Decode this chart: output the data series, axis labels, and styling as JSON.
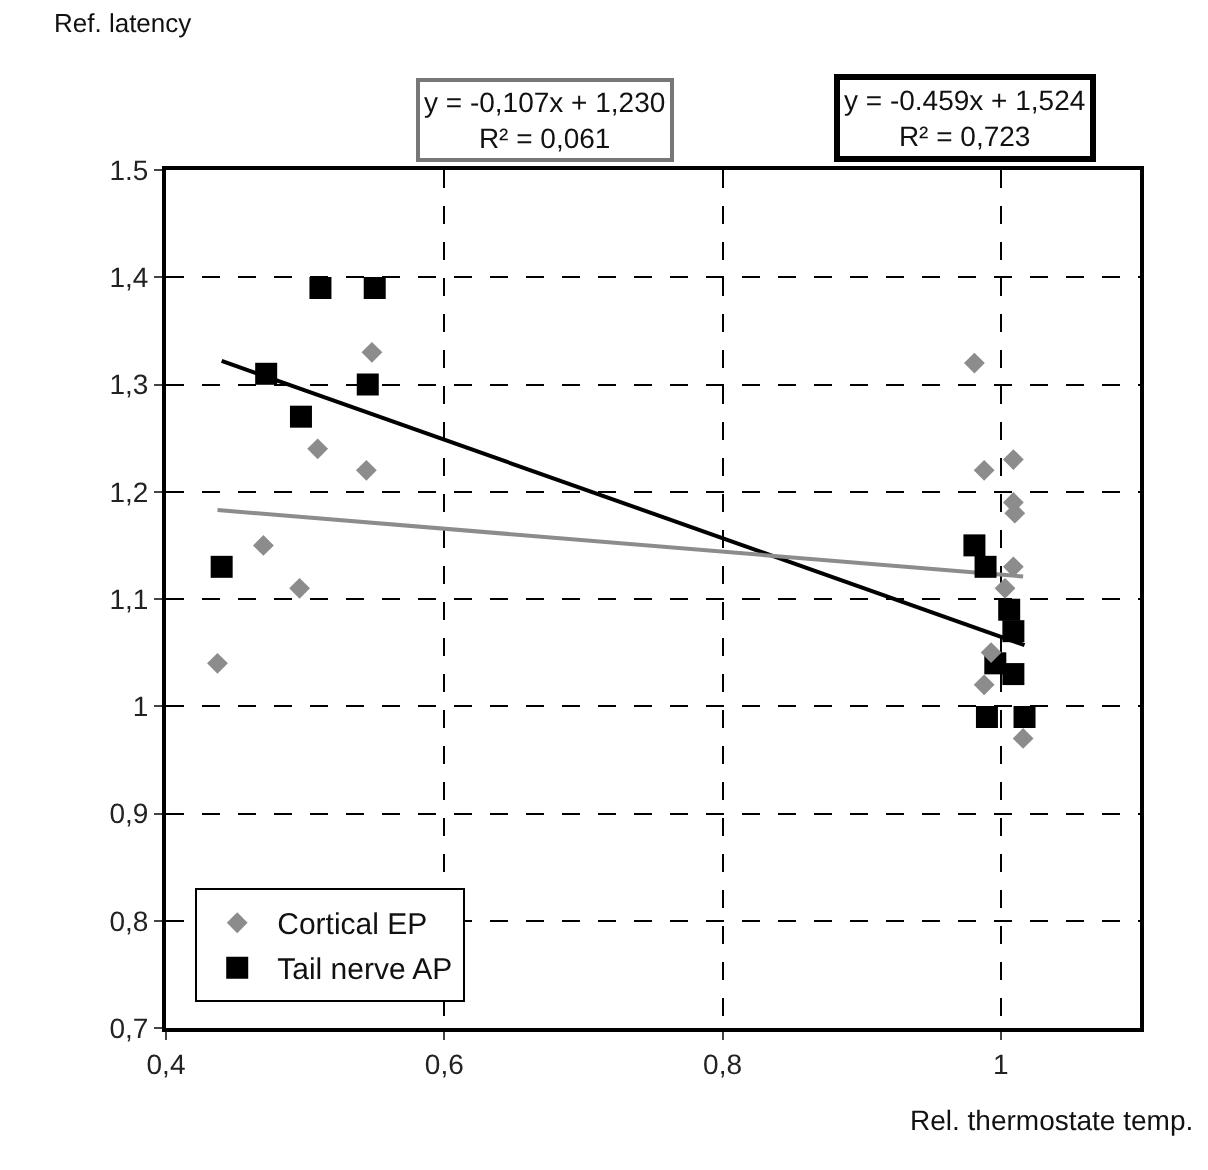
{
  "chart_data": {
    "type": "scatter",
    "xlabel": "Rel. thermostate temp.",
    "ylabel": "Ref. latency",
    "annotations": [
      "y = -0,107x + 1,230\nR² = 0,061",
      "y = -0.459x + 1,524\nR² = 0,723"
    ],
    "xlim": [
      0.4,
      1.1
    ],
    "ylim": [
      0.7,
      1.5
    ],
    "xticks": [
      {
        "value": 0.4,
        "label": "0,4"
      },
      {
        "value": 0.6,
        "label": "0,6"
      },
      {
        "value": 0.8,
        "label": "0,8"
      },
      1
    ],
    "yticks": [
      {
        "value": 0.7,
        "label": "0,7"
      },
      {
        "value": 0.8,
        "label": "0,8"
      },
      {
        "value": 0.9,
        "label": "0,9"
      },
      1,
      {
        "value": 1.1,
        "label": "1,1"
      },
      {
        "value": 1.2,
        "label": "1,2"
      },
      {
        "value": 1.3,
        "label": "1,3"
      },
      {
        "value": 1.4,
        "label": "1,4"
      },
      1.5
    ],
    "grid": true,
    "legend": "bottom left",
    "series": [
      {
        "name": "Cortical EP",
        "color": "#8c8c8c",
        "marker": "diamond",
        "x": [
          0.548,
          0.509,
          0.544,
          0.47,
          0.496,
          0.437,
          0.981,
          0.988,
          1.009,
          1.009,
          1.01,
          1.009,
          1.003,
          0.993,
          0.988,
          1.016
        ],
        "values": [
          1.33,
          1.24,
          1.22,
          1.15,
          1.11,
          1.04,
          1.32,
          1.22,
          1.23,
          1.19,
          1.18,
          1.13,
          1.11,
          1.05,
          1.02,
          0.97
        ]
      },
      {
        "name": "Tail nerve AP",
        "color": "#000000",
        "marker": "square",
        "x": [
          0.44,
          0.472,
          0.497,
          0.511,
          0.55,
          0.545,
          0.981,
          0.989,
          1.006,
          1.009,
          0.996,
          1.009,
          0.99,
          1.017
        ],
        "values": [
          1.13,
          1.31,
          1.27,
          1.39,
          1.39,
          1.3,
          1.15,
          1.13,
          1.09,
          1.07,
          1.04,
          1.03,
          0.99,
          0.99
        ]
      },
      {
        "type": "line",
        "color": "#8c8c8c",
        "x": [
          0.437,
          1.016
        ],
        "values": [
          1.183,
          1.121
        ]
      },
      {
        "type": "line",
        "color": "#000000",
        "x": [
          0.44,
          1.017
        ],
        "values": [
          1.322,
          1.057
        ]
      }
    ]
  }
}
